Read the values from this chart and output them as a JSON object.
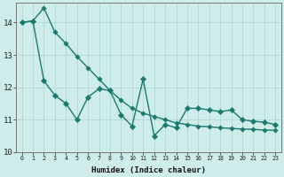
{
  "xlabel": "Humidex (Indice chaleur)",
  "background_color": "#ceecea",
  "grid_color": "#aed8d4",
  "line_color": "#1a7a6e",
  "xlim": [
    -0.5,
    23.5
  ],
  "ylim": [
    10,
    14.6
  ],
  "yticks": [
    10,
    11,
    12,
    13,
    14
  ],
  "xticks": [
    0,
    1,
    2,
    3,
    4,
    5,
    6,
    7,
    8,
    9,
    10,
    11,
    12,
    13,
    14,
    15,
    16,
    17,
    18,
    19,
    20,
    21,
    22,
    23
  ],
  "series1_x": [
    0,
    1,
    2,
    3,
    4,
    5,
    6,
    7,
    8,
    9,
    10,
    11,
    12,
    13,
    14,
    15,
    16,
    17,
    18,
    19,
    20,
    21,
    22,
    23
  ],
  "series1_y": [
    14.0,
    14.05,
    14.45,
    13.7,
    13.35,
    12.95,
    12.6,
    12.25,
    11.9,
    11.6,
    11.35,
    11.2,
    11.1,
    11.0,
    10.9,
    10.85,
    10.8,
    10.78,
    10.75,
    10.73,
    10.71,
    10.7,
    10.68,
    10.67
  ],
  "series2_x": [
    0,
    1,
    2,
    3,
    4,
    5,
    6,
    7,
    8,
    9,
    10,
    11,
    12,
    13,
    14,
    15,
    16,
    17,
    18,
    19,
    20,
    21,
    22,
    23
  ],
  "series2_y": [
    14.0,
    14.05,
    12.2,
    11.75,
    11.5,
    11.0,
    11.7,
    11.95,
    11.9,
    11.15,
    10.8,
    12.25,
    10.5,
    10.85,
    10.75,
    11.35,
    11.35,
    11.3,
    11.25,
    11.3,
    11.0,
    10.95,
    10.92,
    10.85
  ],
  "marker_size": 2.8,
  "linewidth1": 1.0,
  "linewidth2": 1.0
}
